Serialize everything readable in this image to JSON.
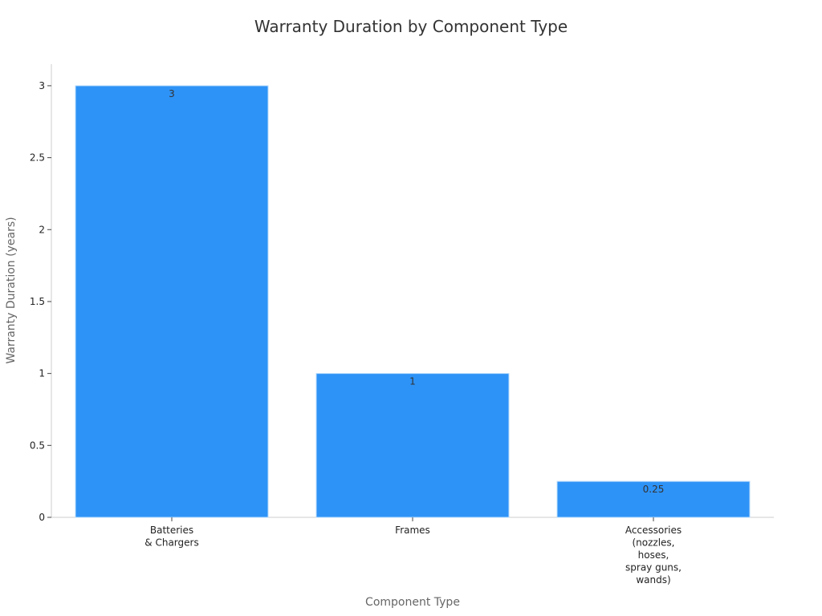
{
  "chart_data": {
    "type": "bar",
    "title": "Warranty Duration by Component Type",
    "xlabel": "Component Type",
    "ylabel": "Warranty Duration (years)",
    "categories": [
      [
        "Batteries",
        "& Chargers"
      ],
      [
        "Frames"
      ],
      [
        "Accessories",
        "(nozzles,",
        "hoses,",
        "spray guns,",
        "wands)"
      ]
    ],
    "values": [
      3,
      1,
      0.25
    ],
    "value_labels": [
      "3",
      "1",
      "0.25"
    ],
    "ylim": [
      0,
      3.15
    ],
    "yticks": [
      0,
      0.5,
      1,
      1.5,
      2,
      2.5,
      3
    ],
    "ytick_labels": [
      "0",
      "0.5",
      "1",
      "1.5",
      "2",
      "2.5",
      "3"
    ],
    "grid": false,
    "legend": "none",
    "bar_color": "#2e93f7",
    "bar_edge_color": "#b9dcfb",
    "axis_color": "#cccccc"
  }
}
